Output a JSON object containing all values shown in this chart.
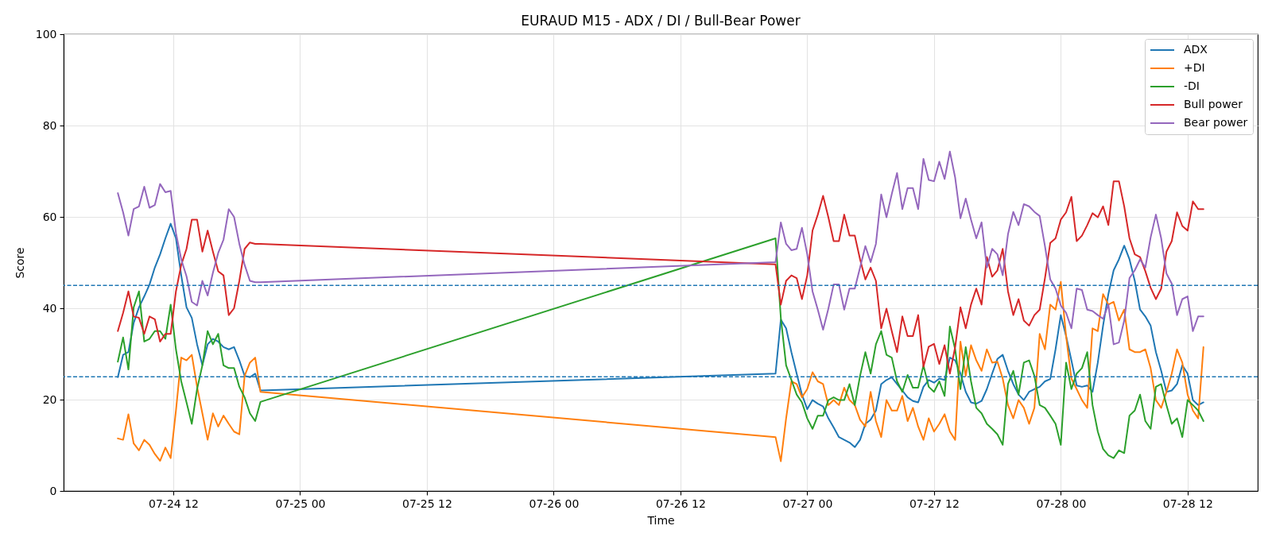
{
  "chart_data": {
    "type": "line",
    "title": "EURAUD M15 - ADX / DI / Bull-Bear Power",
    "xlabel": "Time",
    "ylabel": "Score",
    "xlim": [
      "--07-24T01:37",
      "--07-28T18:38"
    ],
    "ylim": [
      0,
      100
    ],
    "xticks": [
      {
        "value": "--07-24T12:00",
        "label": "07-24 12"
      },
      {
        "value": "--07-25T00:00",
        "label": "07-25 00"
      },
      {
        "value": "--07-25T12:00",
        "label": "07-25 12"
      },
      {
        "value": "--07-26T00:00",
        "label": "07-26 00"
      },
      {
        "value": "--07-26T12:00",
        "label": "07-26 12"
      },
      {
        "value": "--07-27T00:00",
        "label": "07-27 00"
      },
      {
        "value": "--07-27T12:00",
        "label": "07-27 12"
      },
      {
        "value": "--07-28T00:00",
        "label": "07-28 00"
      },
      {
        "value": "--07-28T12:00",
        "label": "07-28 12"
      }
    ],
    "yticks": [
      0,
      20,
      40,
      60,
      80,
      100
    ],
    "grid": true,
    "legend": "top right",
    "ref_lines": [
      {
        "axis": "y",
        "value": 45,
        "color": "#1f77b4",
        "line_style": "dashed"
      },
      {
        "axis": "y",
        "value": 25,
        "color": "#1f77b4",
        "line_style": "dashed"
      }
    ],
    "x": [
      "--07-24T06:45",
      "--07-24T07:15",
      "--07-24T07:45",
      "--07-24T08:15",
      "--07-24T08:45",
      "--07-24T09:15",
      "--07-24T09:45",
      "--07-24T10:15",
      "--07-24T10:45",
      "--07-24T11:15",
      "--07-24T11:45",
      "--07-24T12:15",
      "--07-24T12:45",
      "--07-24T13:15",
      "--07-24T13:45",
      "--07-24T14:15",
      "--07-24T14:45",
      "--07-24T15:15",
      "--07-24T15:45",
      "--07-24T16:15",
      "--07-24T16:45",
      "--07-24T17:15",
      "--07-24T17:45",
      "--07-24T18:15",
      "--07-24T18:45",
      "--07-24T19:15",
      "--07-24T19:45",
      "--07-24T20:15",
      "--07-26T21:00",
      "--07-26T21:30",
      "--07-26T22:00",
      "--07-26T22:30",
      "--07-26T23:00",
      "--07-26T23:30",
      "--07-27T00:00",
      "--07-27T00:30",
      "--07-27T01:00",
      "--07-27T01:30",
      "--07-27T02:00",
      "--07-27T02:30",
      "--07-27T03:00",
      "--07-27T03:30",
      "--07-27T04:00",
      "--07-27T04:30",
      "--07-27T05:00",
      "--07-27T05:30",
      "--07-27T06:00",
      "--07-27T06:30",
      "--07-27T07:00",
      "--07-27T07:30",
      "--07-27T08:00",
      "--07-27T08:30",
      "--07-27T09:00",
      "--07-27T09:30",
      "--07-27T10:00",
      "--07-27T10:30",
      "--07-27T11:00",
      "--07-27T11:30",
      "--07-27T12:00",
      "--07-27T12:30",
      "--07-27T13:00",
      "--07-27T13:30",
      "--07-27T14:00",
      "--07-27T14:30",
      "--07-27T15:00",
      "--07-27T15:30",
      "--07-27T16:00",
      "--07-27T16:30",
      "--07-27T17:00",
      "--07-27T17:30",
      "--07-27T18:00",
      "--07-27T18:30",
      "--07-27T19:00",
      "--07-27T19:30",
      "--07-27T20:00",
      "--07-27T20:30",
      "--07-27T21:00",
      "--07-27T21:30",
      "--07-27T22:00",
      "--07-27T22:30",
      "--07-27T23:00",
      "--07-27T23:30",
      "--07-28T00:00",
      "--07-28T00:30",
      "--07-28T01:00",
      "--07-28T01:30",
      "--07-28T02:00",
      "--07-28T02:30",
      "--07-28T03:00",
      "--07-28T03:30",
      "--07-28T04:00",
      "--07-28T04:30",
      "--07-28T05:00",
      "--07-28T05:30",
      "--07-28T06:00",
      "--07-28T06:30",
      "--07-28T07:00",
      "--07-28T07:30",
      "--07-28T08:00",
      "--07-28T08:30",
      "--07-28T09:00",
      "--07-28T09:30",
      "--07-28T10:00",
      "--07-28T10:30",
      "--07-28T11:00",
      "--07-28T11:30",
      "--07-28T12:00",
      "--07-28T12:30",
      "--07-28T13:00",
      "--07-28T13:30"
    ],
    "series": [
      {
        "name": "ADX",
        "color": "#1f77b4",
        "values": [
          24.9,
          29.8,
          30.4,
          36.8,
          40.2,
          42.6,
          45.2,
          48.9,
          51.8,
          55.3,
          58.5,
          55.3,
          47.2,
          40.2,
          37.9,
          32.1,
          27.5,
          32.1,
          33.3,
          32.7,
          31.5,
          31.0,
          31.5,
          28.6,
          25.2,
          24.9,
          25.7,
          22.0,
          25.7,
          37.5,
          35.6,
          30.4,
          25.7,
          21.1,
          17.9,
          19.9,
          19.1,
          18.5,
          15.9,
          13.9,
          11.8,
          11.2,
          10.6,
          9.6,
          11.2,
          14.7,
          15.6,
          17.6,
          23.4,
          24.3,
          24.9,
          23.4,
          22.0,
          20.5,
          19.7,
          19.4,
          22.8,
          24.3,
          23.7,
          24.6,
          24.3,
          29.2,
          28.6,
          25.7,
          21.7,
          19.4,
          19.1,
          19.7,
          22.3,
          25.7,
          28.9,
          29.8,
          26.3,
          23.4,
          21.1,
          19.9,
          21.7,
          22.3,
          22.8,
          24.0,
          24.5,
          31.0,
          38.5,
          33.9,
          28.6,
          23.1,
          22.8,
          23.1,
          21.7,
          28.1,
          36.2,
          43.1,
          48.3,
          50.7,
          53.7,
          50.7,
          46.0,
          39.7,
          38.2,
          36.2,
          30.4,
          26.3,
          21.7,
          22.0,
          23.4,
          27.5,
          25.7,
          19.9,
          18.8,
          19.4
        ]
      },
      {
        "name": "+DI",
        "color": "#ff7f0e",
        "values": [
          11.5,
          11.2,
          16.8,
          10.4,
          8.9,
          11.2,
          10.1,
          8.1,
          6.6,
          9.5,
          7.2,
          17.6,
          29.2,
          28.6,
          29.8,
          22.8,
          17.0,
          11.2,
          17.0,
          14.1,
          16.5,
          14.7,
          13.0,
          12.4,
          25.2,
          28.1,
          29.2,
          21.7,
          11.8,
          6.5,
          15.9,
          24.0,
          23.4,
          20.5,
          22.3,
          26.0,
          24.0,
          23.4,
          18.8,
          19.9,
          18.8,
          22.6,
          19.9,
          18.8,
          15.6,
          14.1,
          21.7,
          15.3,
          11.8,
          19.9,
          17.6,
          17.6,
          20.8,
          15.3,
          18.2,
          14.1,
          11.2,
          15.9,
          13.0,
          14.7,
          16.8,
          13.0,
          11.2,
          32.7,
          25.2,
          31.9,
          28.6,
          26.3,
          31.0,
          28.1,
          28.3,
          24.6,
          18.8,
          15.9,
          19.9,
          18.2,
          14.7,
          18.2,
          34.4,
          31.0,
          40.8,
          39.7,
          45.8,
          33.9,
          24.6,
          22.3,
          19.9,
          18.2,
          35.6,
          35.0,
          43.1,
          40.8,
          41.4,
          37.3,
          39.7,
          31.0,
          30.4,
          30.4,
          31.0,
          26.9,
          19.9,
          18.2,
          21.7,
          25.7,
          31.0,
          28.1,
          21.1,
          17.6,
          15.9,
          31.5
        ]
      },
      {
        "name": "-DI",
        "color": "#2ca02c",
        "values": [
          28.3,
          33.6,
          26.6,
          40.2,
          43.7,
          32.7,
          33.3,
          35.0,
          35.0,
          33.3,
          40.8,
          31.0,
          24.0,
          19.4,
          14.7,
          22.3,
          27.5,
          35.0,
          32.1,
          34.4,
          27.5,
          26.9,
          26.9,
          22.8,
          20.5,
          17.0,
          15.3,
          19.5,
          55.3,
          37.9,
          27.5,
          24.3,
          21.1,
          19.4,
          15.9,
          13.6,
          16.5,
          16.5,
          19.9,
          20.5,
          19.9,
          19.9,
          23.4,
          18.8,
          25.2,
          30.4,
          25.7,
          32.1,
          35.0,
          29.8,
          29.2,
          24.0,
          21.7,
          25.4,
          22.6,
          22.6,
          27.5,
          22.8,
          21.7,
          24.0,
          20.8,
          36.0,
          31.0,
          22.3,
          31.5,
          24.0,
          18.2,
          17.0,
          14.7,
          13.6,
          12.4,
          10.1,
          23.4,
          26.3,
          21.1,
          28.1,
          28.6,
          25.2,
          18.8,
          18.2,
          16.5,
          14.7,
          10.1,
          28.1,
          22.3,
          25.7,
          26.9,
          30.4,
          18.8,
          13.0,
          9.2,
          7.8,
          7.2,
          8.9,
          8.3,
          16.5,
          17.6,
          21.1,
          15.3,
          13.6,
          22.8,
          23.4,
          18.8,
          14.7,
          15.9,
          11.8,
          19.9,
          18.8,
          17.6,
          15.3
        ]
      },
      {
        "name": "Bull power",
        "color": "#d62728",
        "values": [
          35.0,
          39.0,
          43.7,
          38.2,
          37.9,
          34.4,
          38.2,
          37.6,
          32.7,
          34.4,
          34.4,
          43.7,
          49.5,
          53.0,
          59.4,
          59.4,
          52.4,
          57.0,
          52.4,
          48.1,
          47.2,
          38.5,
          40.0,
          46.0,
          53.0,
          54.4,
          54.1,
          54.1,
          49.6,
          40.8,
          46.0,
          47.2,
          46.6,
          42.0,
          47.2,
          57.0,
          60.5,
          64.6,
          59.9,
          54.7,
          54.7,
          60.5,
          55.9,
          55.9,
          50.7,
          46.3,
          48.9,
          46.0,
          35.6,
          39.9,
          35.0,
          30.4,
          38.2,
          33.9,
          33.9,
          38.5,
          27.2,
          31.6,
          32.2,
          27.8,
          31.9,
          25.7,
          31.5,
          40.2,
          35.6,
          40.8,
          44.3,
          40.8,
          51.2,
          46.9,
          48.3,
          53.0,
          43.7,
          38.5,
          42.0,
          37.3,
          36.2,
          38.5,
          39.7,
          46.6,
          54.3,
          55.3,
          59.4,
          61.0,
          64.4,
          54.7,
          55.9,
          58.2,
          60.8,
          59.9,
          62.3,
          58.2,
          67.8,
          67.8,
          62.3,
          55.3,
          51.8,
          51.2,
          48.1,
          44.5,
          42.0,
          44.3,
          52.4,
          54.7,
          61.0,
          58.0,
          57.0,
          63.4,
          61.7,
          61.7
        ]
      },
      {
        "name": "Bear power",
        "color": "#9467bd",
        "values": [
          65.2,
          61.0,
          55.9,
          61.7,
          62.3,
          66.6,
          62.0,
          62.6,
          67.2,
          65.4,
          65.7,
          56.5,
          50.7,
          47.0,
          41.4,
          40.6,
          46.0,
          42.8,
          47.8,
          52.1,
          55.0,
          61.7,
          60.0,
          54.1,
          49.5,
          46.0,
          45.7,
          45.7,
          50.1,
          58.8,
          54.1,
          52.7,
          53.0,
          57.6,
          51.8,
          43.7,
          39.7,
          35.3,
          39.9,
          45.2,
          45.2,
          39.7,
          44.3,
          44.3,
          48.9,
          53.6,
          50.1,
          54.1,
          64.9,
          59.9,
          65.0,
          69.6,
          61.7,
          66.3,
          66.3,
          61.7,
          72.7,
          68.1,
          67.8,
          72.1,
          68.3,
          74.3,
          68.6,
          59.7,
          64.0,
          59.4,
          55.3,
          58.8,
          48.9,
          53.0,
          51.8,
          47.2,
          56.2,
          61.1,
          58.2,
          62.8,
          62.3,
          61.1,
          60.2,
          53.6,
          46.3,
          44.3,
          40.6,
          39.0,
          35.6,
          44.3,
          44.0,
          39.7,
          39.4,
          38.5,
          37.7,
          40.8,
          32.1,
          32.5,
          37.3,
          46.6,
          48.3,
          50.7,
          48.9,
          55.5,
          60.5,
          55.3,
          47.6,
          45.4,
          38.5,
          42.0,
          42.6,
          35.0,
          38.2,
          38.2
        ]
      }
    ]
  }
}
